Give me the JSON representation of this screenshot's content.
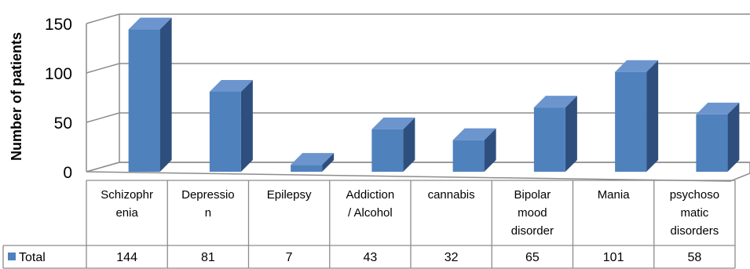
{
  "chart_data": {
    "type": "bar",
    "ylabel": "Number of patients",
    "ylim": [
      0,
      150
    ],
    "yticks": [
      0,
      50,
      100,
      150
    ],
    "categories": [
      [
        "Schizophr",
        "enia"
      ],
      [
        "Depressio",
        "n"
      ],
      [
        "Epilepsy"
      ],
      [
        "Addiction",
        "/ Alcohol"
      ],
      [
        "cannabis"
      ],
      [
        "Bipolar",
        "mood",
        "disorder"
      ],
      [
        "Mania"
      ],
      [
        "psychoso",
        "matic",
        "disorders"
      ]
    ],
    "series": [
      {
        "name": "Total",
        "color": "#4F81BD",
        "values": [
          144,
          81,
          7,
          43,
          32,
          65,
          101,
          58
        ]
      }
    ],
    "grid": true,
    "legend": "data-table"
  }
}
